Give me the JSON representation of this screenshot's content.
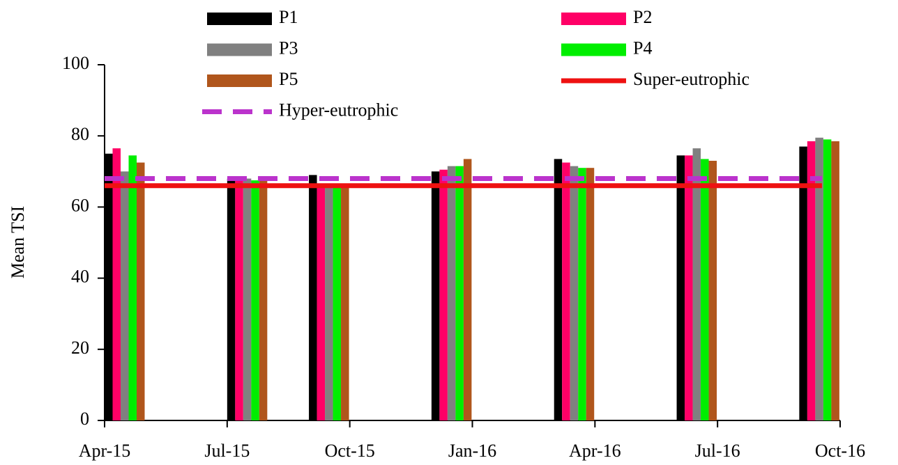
{
  "chart_data": {
    "type": "bar",
    "y_label": "Mean TSI",
    "x": [
      "2015-04",
      "2015-07",
      "2015-09",
      "2015-12",
      "2016-03",
      "2016-06",
      "2016-09"
    ],
    "xlim": [
      "2015-04",
      "2016-10"
    ],
    "xticks": [
      {
        "value": "2015-04",
        "label": "Apr-15"
      },
      {
        "value": "2015-07",
        "label": "Jul-15"
      },
      {
        "value": "2015-10",
        "label": "Oct-15"
      },
      {
        "value": "2016-01",
        "label": "Jan-16"
      },
      {
        "value": "2016-04",
        "label": "Apr-16"
      },
      {
        "value": "2016-07",
        "label": "Jul-16"
      },
      {
        "value": "2016-10",
        "label": "Oct-16"
      }
    ],
    "ylim": [
      0,
      100
    ],
    "yticks": [
      0,
      20,
      40,
      60,
      80,
      100
    ],
    "series": [
      {
        "name": "P1",
        "color": "#000000",
        "values": [
          75,
          68,
          69,
          70,
          73.5,
          74.5,
          77
        ]
      },
      {
        "name": "P2",
        "color": "#ff0066",
        "values": [
          76.5,
          67.5,
          66,
          70.5,
          72.5,
          74.5,
          78.5
        ]
      },
      {
        "name": "P3",
        "color": "#808080",
        "values": [
          70,
          68,
          65.5,
          71.5,
          71.5,
          76.5,
          79.5
        ]
      },
      {
        "name": "P4",
        "color": "#00ee00",
        "values": [
          74.5,
          67.5,
          65.5,
          71.5,
          71,
          73.5,
          79
        ]
      },
      {
        "name": "P5",
        "color": "#b0561c",
        "values": [
          72.5,
          68,
          66,
          73.5,
          71,
          73,
          78.5
        ]
      }
    ],
    "reference_lines": [
      {
        "name": "Super-eutrophic",
        "value": 66,
        "color": "#ee1111",
        "style": "solid"
      },
      {
        "name": "Hyper-eutrophic",
        "value": 68,
        "color": "#bb33cc",
        "style": "dashed"
      }
    ],
    "grid": false
  }
}
